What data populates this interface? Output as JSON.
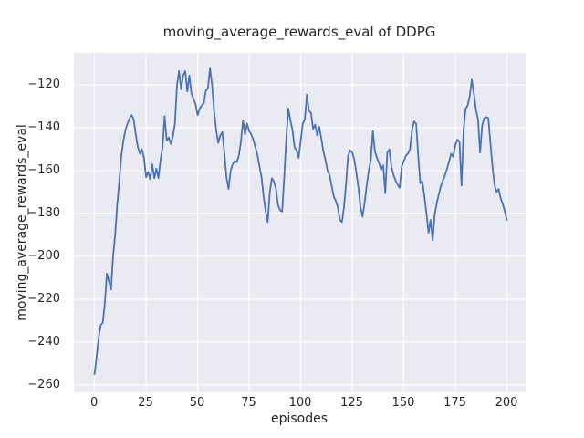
{
  "figure": {
    "title": "moving_average_rewards_eval of DDPG",
    "xlabel": "episodes",
    "ylabel": "moving_average_rewards_eval",
    "background_color": "#ffffff",
    "axes_background_color": "#eaeaf2",
    "grid_color": "#ffffff",
    "line_color": "#4c72b0",
    "text_color": "#262626"
  },
  "chart_data": {
    "type": "line",
    "title": "moving_average_rewards_eval of DDPG",
    "xlabel": "episodes",
    "ylabel": "moving_average_rewards_eval",
    "legend": false,
    "grid": true,
    "x_ticks": [
      0,
      25,
      50,
      75,
      100,
      125,
      150,
      175,
      200
    ],
    "y_ticks": [
      -120,
      -140,
      -160,
      -180,
      -200,
      -220,
      -240,
      -260
    ],
    "xlim": [
      -10,
      209.3
    ],
    "ylim": [
      -263.5,
      -105
    ],
    "x_start": 0,
    "x_step": 1,
    "series": [
      {
        "name": "moving_average_rewards_eval",
        "color": "#4c72b0",
        "values": [
          -255,
          -247,
          -238,
          -232,
          -231,
          -222,
          -208,
          -211.5,
          -215.5,
          -200,
          -190,
          -176,
          -165,
          -153,
          -146,
          -141,
          -138,
          -135.5,
          -134,
          -136,
          -143,
          -149,
          -152,
          -150,
          -154,
          -163,
          -160.5,
          -164,
          -157,
          -163.5,
          -159,
          -163.5,
          -155,
          -149,
          -134.5,
          -146,
          -144.5,
          -147.5,
          -144,
          -138,
          -120,
          -113.5,
          -122,
          -115.5,
          -113.5,
          -123,
          -115.5,
          -124,
          -126.5,
          -129,
          -134,
          -131,
          -129.5,
          -128.5,
          -122.5,
          -121.5,
          -112,
          -120,
          -132,
          -141,
          -147,
          -143.5,
          -142,
          -152,
          -163,
          -168.5,
          -160,
          -157,
          -155.5,
          -156,
          -153,
          -146.5,
          -136.5,
          -143,
          -138,
          -141.5,
          -143,
          -145.5,
          -149,
          -152.5,
          -158,
          -163,
          -172,
          -179,
          -184,
          -170,
          -163.5,
          -165,
          -168.5,
          -176,
          -178.5,
          -179,
          -163,
          -145,
          -131,
          -136.5,
          -141,
          -149,
          -150.5,
          -154,
          -146,
          -138,
          -136,
          -124.5,
          -132,
          -133,
          -140.5,
          -138.5,
          -143.5,
          -139.5,
          -145,
          -151,
          -155,
          -160,
          -162,
          -167,
          -172,
          -174,
          -177,
          -183,
          -184,
          -177,
          -166,
          -153,
          -150.5,
          -151.5,
          -155,
          -161,
          -168,
          -177,
          -181.5,
          -175,
          -167,
          -160,
          -155,
          -141.5,
          -151,
          -154,
          -156.5,
          -159.5,
          -157.5,
          -170.5,
          -151.5,
          -150,
          -158,
          -162,
          -164.5,
          -166.5,
          -168,
          -158,
          -155.5,
          -153,
          -152,
          -150,
          -141,
          -137,
          -138,
          -153,
          -166,
          -165,
          -172,
          -180,
          -189,
          -183,
          -192.5,
          -180.5,
          -175,
          -171,
          -167,
          -164.5,
          -162,
          -159,
          -155.5,
          -152,
          -153.5,
          -148,
          -145.5,
          -146.5,
          -167,
          -141,
          -131,
          -129.5,
          -125,
          -117.5,
          -124,
          -131.5,
          -136,
          -151.5,
          -139,
          -135.5,
          -135,
          -135.5,
          -147,
          -158,
          -166.5,
          -170,
          -168.5,
          -173,
          -175.5,
          -179,
          -183
        ]
      }
    ]
  }
}
